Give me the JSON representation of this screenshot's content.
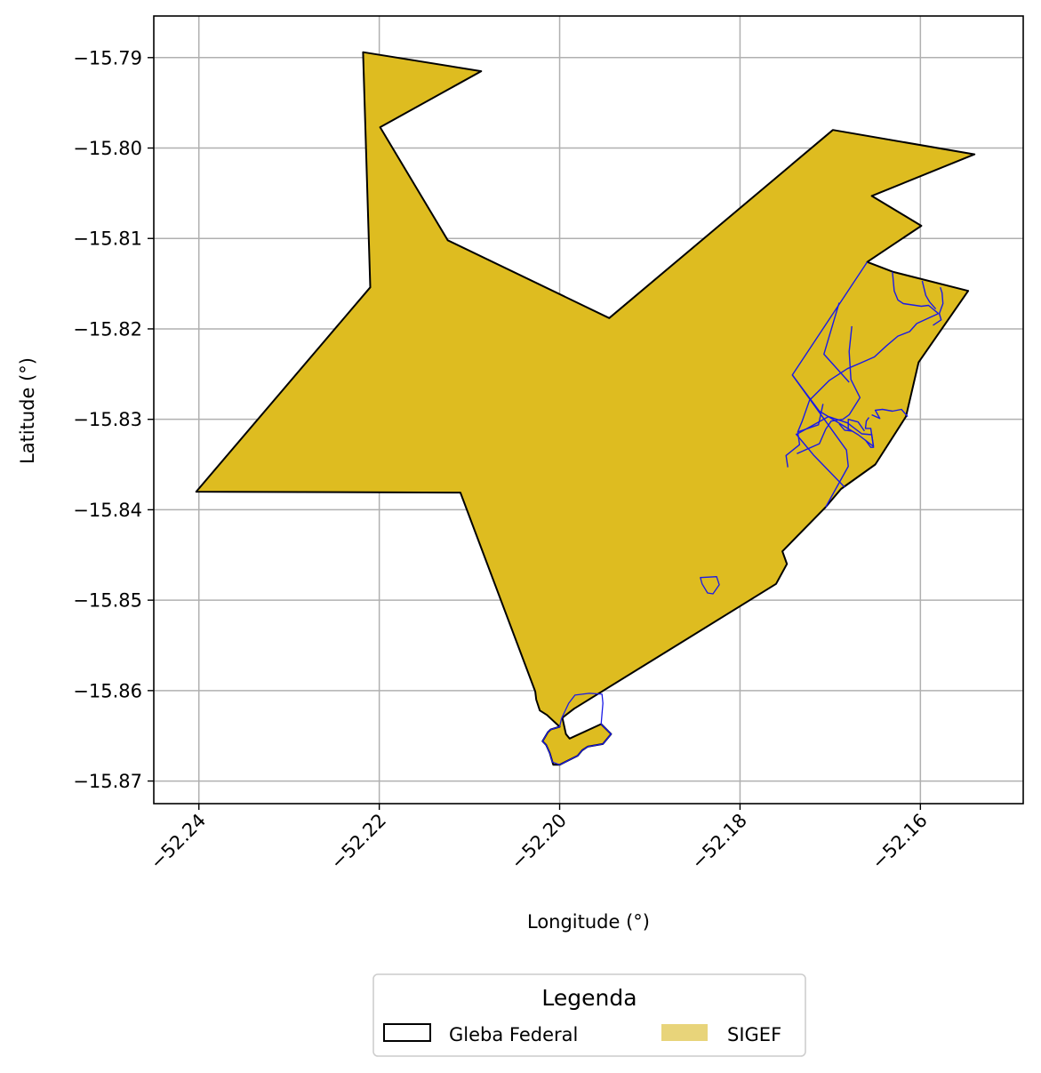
{
  "chart_data": {
    "type": "map",
    "xlabel": "Longitude (°)",
    "ylabel": "Latitude (°)",
    "xlim": [
      -52.245,
      -52.1486
    ],
    "ylim": [
      -15.8725,
      -15.7854
    ],
    "xticks": [
      -52.24,
      -52.22,
      -52.2,
      -52.18,
      -52.16
    ],
    "xtick_labels": [
      "−52.24",
      "−52.22",
      "−52.20",
      "−52.18",
      "−52.16"
    ],
    "yticks": [
      -15.79,
      -15.8,
      -15.81,
      -15.82,
      -15.83,
      -15.84,
      -15.85,
      -15.86,
      -15.87
    ],
    "ytick_labels": [
      "−15.79",
      "−15.80",
      "−15.81",
      "−15.82",
      "−15.83",
      "−15.84",
      "−15.85",
      "−15.86",
      "−15.87"
    ],
    "grid": true,
    "legend": {
      "title": "Legenda",
      "placement": "bottom-center",
      "entries": [
        {
          "label": "Gleba Federal",
          "style": "outline",
          "color": "#000000"
        },
        {
          "label": "SIGEF",
          "style": "fill",
          "color": "#E8D47A"
        }
      ]
    },
    "layers": {
      "gleba_federal": {
        "fill": "#DEBC20",
        "stroke": "#000000",
        "polygon": [
          [
            -52.2218,
            -15.7894
          ],
          [
            -52.2087,
            -15.7915
          ],
          [
            -52.2199,
            -15.7977
          ],
          [
            -52.2124,
            -15.8102
          ],
          [
            -52.1945,
            -15.8188
          ],
          [
            -52.1697,
            -15.798
          ],
          [
            -52.154,
            -15.8007
          ],
          [
            -52.1654,
            -15.8053
          ],
          [
            -52.1599,
            -15.8086
          ],
          [
            -52.1659,
            -15.8126
          ],
          [
            -52.163,
            -15.8137
          ],
          [
            -52.1547,
            -15.8158
          ],
          [
            -52.1602,
            -15.8237
          ],
          [
            -52.1616,
            -15.8297
          ],
          [
            -52.165,
            -15.835
          ],
          [
            -52.1688,
            -15.8377
          ],
          [
            -52.1705,
            -15.8397
          ],
          [
            -52.1753,
            -15.8446
          ],
          [
            -52.1748,
            -15.846
          ],
          [
            -52.176,
            -15.8482
          ],
          [
            -52.1984,
            -15.862
          ],
          [
            -52.1997,
            -15.863
          ],
          [
            -52.1993,
            -15.8648
          ],
          [
            -52.1989,
            -15.8653
          ],
          [
            -52.1954,
            -15.8637
          ],
          [
            -52.1943,
            -15.8648
          ],
          [
            -52.1952,
            -15.8659
          ],
          [
            -52.1969,
            -15.8662
          ],
          [
            -52.1975,
            -15.8666
          ],
          [
            -52.198,
            -15.8672
          ],
          [
            -52.2,
            -15.8682
          ],
          [
            -52.2007,
            -15.8682
          ],
          [
            -52.2008,
            -15.8679
          ],
          [
            -52.2011,
            -15.8669
          ],
          [
            -52.2015,
            -15.866
          ],
          [
            -52.2019,
            -15.8656
          ],
          [
            -52.2013,
            -15.8646
          ],
          [
            -52.201,
            -15.8643
          ],
          [
            -52.2,
            -15.864
          ],
          [
            -52.2014,
            -15.8627
          ],
          [
            -52.2022,
            -15.8622
          ],
          [
            -52.2026,
            -15.861
          ],
          [
            -52.2027,
            -15.8601
          ],
          [
            -52.211,
            -15.8381
          ],
          [
            -52.2403,
            -15.838
          ],
          [
            -52.221,
            -15.8154
          ]
        ]
      },
      "sigef": {
        "stroke": "#1A1AE6",
        "parcels": [
          [
            [
              -52.1844,
              -15.8475
            ],
            [
              -52.1826,
              -15.8474
            ],
            [
              -52.1823,
              -15.8483
            ],
            [
              -52.183,
              -15.8493
            ],
            [
              -52.1836,
              -15.8492
            ],
            [
              -52.1842,
              -15.8482
            ]
          ],
          [
            [
              -52.1998,
              -15.8631
            ],
            [
              -52.199,
              -15.8614
            ],
            [
              -52.1983,
              -15.8605
            ],
            [
              -52.1967,
              -15.8603
            ],
            [
              -52.1953,
              -15.8604
            ],
            [
              -52.1952,
              -15.8614
            ],
            [
              -52.1954,
              -15.8637
            ],
            [
              -52.1943,
              -15.8648
            ],
            [
              -52.1952,
              -15.8659
            ],
            [
              -52.1969,
              -15.8662
            ],
            [
              -52.1975,
              -15.8666
            ],
            [
              -52.198,
              -15.8672
            ],
            [
              -52.2,
              -15.8682
            ],
            [
              -52.2008,
              -15.8679
            ],
            [
              -52.2011,
              -15.8669
            ],
            [
              -52.2015,
              -15.866
            ],
            [
              -52.2019,
              -15.8656
            ],
            [
              -52.2013,
              -15.8646
            ],
            [
              -52.201,
              -15.8643
            ],
            [
              -52.2,
              -15.864
            ]
          ]
        ],
        "lines": [
          [
            [
              -52.1659,
              -15.8126
            ],
            [
              -52.1742,
              -15.8251
            ],
            [
              -52.1712,
              -15.8291
            ],
            [
              -52.1669,
              -15.8317
            ],
            [
              -52.1652,
              -15.833
            ]
          ],
          [
            [
              -52.1742,
              -15.8251
            ],
            [
              -52.1682,
              -15.8334
            ],
            [
              -52.168,
              -15.8352
            ],
            [
              -52.1705,
              -15.8397
            ]
          ],
          [
            [
              -52.169,
              -15.8171
            ],
            [
              -52.1707,
              -15.8228
            ],
            [
              -52.1679,
              -15.8259
            ]
          ],
          [
            [
              -52.1676,
              -15.8197
            ],
            [
              -52.1679,
              -15.8225
            ],
            [
              -52.1677,
              -15.8256
            ],
            [
              -52.1667,
              -15.8276
            ],
            [
              -52.1679,
              -15.8295
            ],
            [
              -52.1686,
              -15.83
            ],
            [
              -52.1699,
              -15.8302
            ],
            [
              -52.1705,
              -15.8311
            ],
            [
              -52.1712,
              -15.8327
            ],
            [
              -52.1737,
              -15.8338
            ]
          ],
          [
            [
              -52.1708,
              -15.8283
            ],
            [
              -52.1713,
              -15.8306
            ],
            [
              -52.1736,
              -15.8314
            ],
            [
              -52.1734,
              -15.8328
            ],
            [
              -52.1749,
              -15.834
            ],
            [
              -52.1747,
              -15.8353
            ]
          ],
          [
            [
              -52.1738,
              -15.8316
            ],
            [
              -52.1718,
              -15.834
            ],
            [
              -52.1684,
              -15.8375
            ]
          ],
          [
            [
              -52.1631,
              -15.8137
            ],
            [
              -52.1629,
              -15.8158
            ],
            [
              -52.1625,
              -15.8168
            ],
            [
              -52.1619,
              -15.8172
            ],
            [
              -52.1599,
              -15.8175
            ],
            [
              -52.1591,
              -15.8174
            ],
            [
              -52.158,
              -15.8183
            ]
          ],
          [
            [
              -52.1598,
              -15.8147
            ],
            [
              -52.1594,
              -15.8163
            ],
            [
              -52.159,
              -15.817
            ],
            [
              -52.1583,
              -15.8178
            ]
          ],
          [
            [
              -52.158,
              -15.8183
            ],
            [
              -52.1593,
              -15.8189
            ],
            [
              -52.1604,
              -15.8194
            ],
            [
              -52.1612,
              -15.8203
            ],
            [
              -52.1625,
              -15.8208
            ],
            [
              -52.1638,
              -15.8219
            ],
            [
              -52.1651,
              -15.8231
            ],
            [
              -52.1667,
              -15.8238
            ],
            [
              -52.1681,
              -15.8244
            ],
            [
              -52.1701,
              -15.8257
            ],
            [
              -52.1723,
              -15.8279
            ],
            [
              -52.1731,
              -15.8302
            ],
            [
              -52.1736,
              -15.8314
            ]
          ],
          [
            [
              -52.1578,
              -15.8154
            ],
            [
              -52.1576,
              -15.816
            ],
            [
              -52.1575,
              -15.8172
            ],
            [
              -52.1579,
              -15.8183
            ],
            [
              -52.1577,
              -15.819
            ],
            [
              -52.1586,
              -15.8196
            ]
          ],
          [
            [
              -52.1738,
              -15.8317
            ],
            [
              -52.1702,
              -15.8297
            ],
            [
              -52.1681,
              -15.8304
            ],
            [
              -52.1665,
              -15.8316
            ],
            [
              -52.1654,
              -15.8317
            ],
            [
              -52.1652,
              -15.8331
            ],
            [
              -52.1655,
              -15.8331
            ],
            [
              -52.1661,
              -15.8323
            ]
          ],
          [
            [
              -52.169,
              -15.8305
            ],
            [
              -52.1684,
              -15.8312
            ],
            [
              -52.1676,
              -15.8313
            ]
          ],
          [
            [
              -52.1662,
              -15.8313
            ],
            [
              -52.1669,
              -15.8303
            ],
            [
              -52.168,
              -15.83
            ],
            [
              -52.168,
              -15.8312
            ]
          ],
          [
            [
              -52.1652,
              -15.833
            ],
            [
              -52.1655,
              -15.831
            ],
            [
              -52.1661,
              -15.831
            ],
            [
              -52.166,
              -15.8302
            ],
            [
              -52.1657,
              -15.8298
            ]
          ],
          [
            [
              -52.1654,
              -15.8295
            ],
            [
              -52.1645,
              -15.8299
            ],
            [
              -52.165,
              -15.829
            ],
            [
              -52.1642,
              -15.8289
            ],
            [
              -52.1631,
              -15.8291
            ],
            [
              -52.1621,
              -15.8289
            ],
            [
              -52.1614,
              -15.8297
            ]
          ]
        ]
      }
    }
  }
}
